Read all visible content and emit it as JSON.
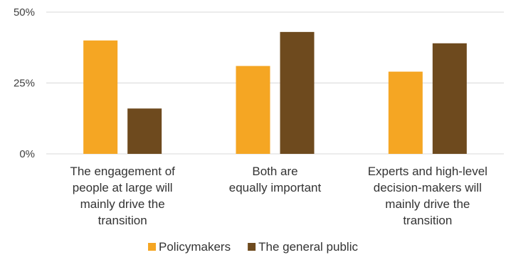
{
  "chart_data": {
    "type": "bar",
    "categories": [
      [
        "The engagement of",
        "people at large will",
        "mainly drive the",
        "transition"
      ],
      [
        "Both are",
        "equally important"
      ],
      [
        "Experts and high-level",
        "decision-makers will",
        "mainly drive the",
        "transition"
      ]
    ],
    "series": [
      {
        "name": "Policymakers",
        "values": [
          40,
          31,
          29
        ],
        "color": "#F5A623"
      },
      {
        "name": "The general public",
        "values": [
          16,
          43,
          39
        ],
        "color": "#6E4A1E"
      }
    ],
    "title": "",
    "xlabel": "",
    "ylabel": "",
    "ylim": [
      0,
      50
    ],
    "yticks": [
      0,
      25,
      50
    ],
    "ytick_labels": [
      "0%",
      "25%",
      "50%"
    ],
    "grid": true,
    "gridline_color": "#d9d9d9",
    "legend_position": "bottom"
  }
}
